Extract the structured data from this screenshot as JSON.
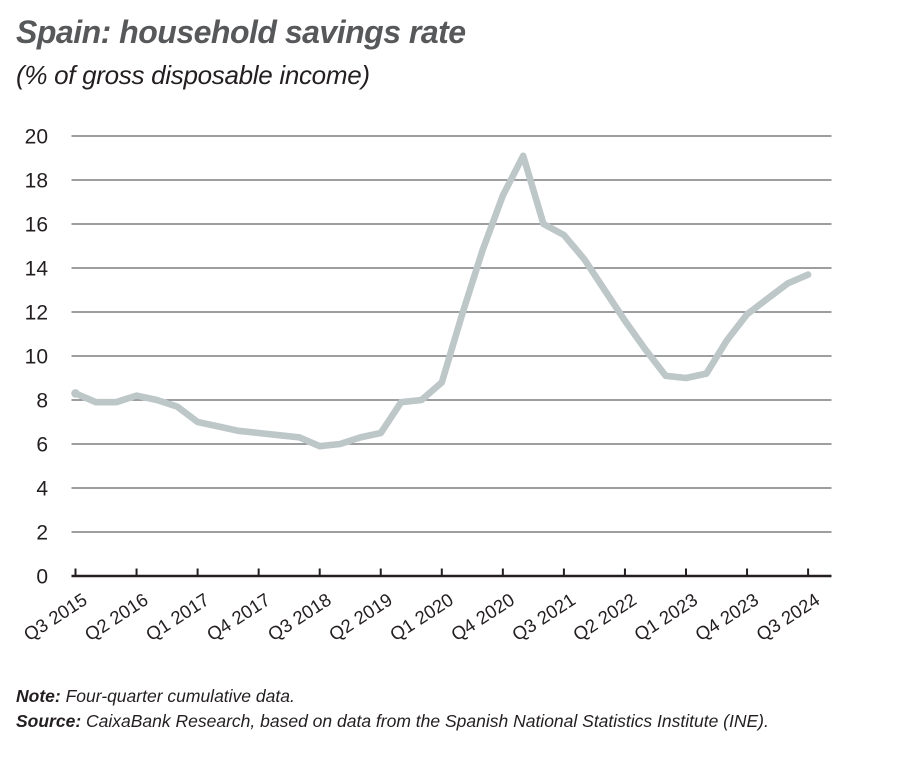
{
  "page": {
    "title": "Spain: household savings rate",
    "subtitle": "(% of gross disposable income)",
    "note_label": "Note:",
    "note_text": " Four-quarter cumulative data.",
    "source_label": "Source:",
    "source_text": " CaixaBank Research, based on data from the Spanish National Statistics Institute (INE)."
  },
  "colors": {
    "line": "#bdc7c8",
    "grid": "#7d7e81",
    "axis": "#231f20",
    "title": "#57585a",
    "text": "#231f20",
    "background": "#ffffff"
  },
  "chart_data": {
    "type": "line",
    "title": "Spain: household savings rate",
    "subtitle": "(% of gross disposable income)",
    "xlabel": "",
    "ylabel": "% of gross disposable income",
    "ylim": [
      0,
      20
    ],
    "ytick_step": 2,
    "grid": "horizontal",
    "legend": "none",
    "line_color": "#bdc7c8",
    "x_tick_label_every": 3,
    "x_tick_labels_shown": [
      "Q3 2015",
      "Q2 2016",
      "Q1 2017",
      "Q4 2017",
      "Q3 2018",
      "Q2 2019",
      "Q1 2020",
      "Q4 2020",
      "Q3 2021",
      "Q2 2022",
      "Q1 2023",
      "Q4 2023",
      "Q3 2024"
    ],
    "x": [
      "Q3 2015",
      "Q4 2015",
      "Q1 2016",
      "Q2 2016",
      "Q3 2016",
      "Q4 2016",
      "Q1 2017",
      "Q2 2017",
      "Q3 2017",
      "Q4 2017",
      "Q1 2018",
      "Q2 2018",
      "Q3 2018",
      "Q4 2018",
      "Q1 2019",
      "Q2 2019",
      "Q3 2019",
      "Q4 2019",
      "Q1 2020",
      "Q2 2020",
      "Q3 2020",
      "Q4 2020",
      "Q1 2021",
      "Q2 2021",
      "Q3 2021",
      "Q4 2021",
      "Q1 2022",
      "Q2 2022",
      "Q3 2022",
      "Q4 2022",
      "Q1 2023",
      "Q2 2023",
      "Q3 2023",
      "Q4 2023",
      "Q1 2024",
      "Q2 2024",
      "Q3 2024"
    ],
    "values": [
      8.3,
      7.9,
      7.9,
      8.2,
      8.0,
      7.7,
      7.0,
      6.8,
      6.6,
      6.5,
      6.4,
      6.3,
      5.9,
      6.0,
      6.3,
      6.5,
      7.9,
      8.0,
      8.8,
      11.9,
      14.8,
      17.3,
      19.1,
      16.0,
      15.5,
      14.4,
      13.0,
      11.6,
      10.3,
      9.1,
      9.0,
      9.2,
      10.7,
      11.9,
      12.6,
      13.3,
      13.7
    ]
  }
}
